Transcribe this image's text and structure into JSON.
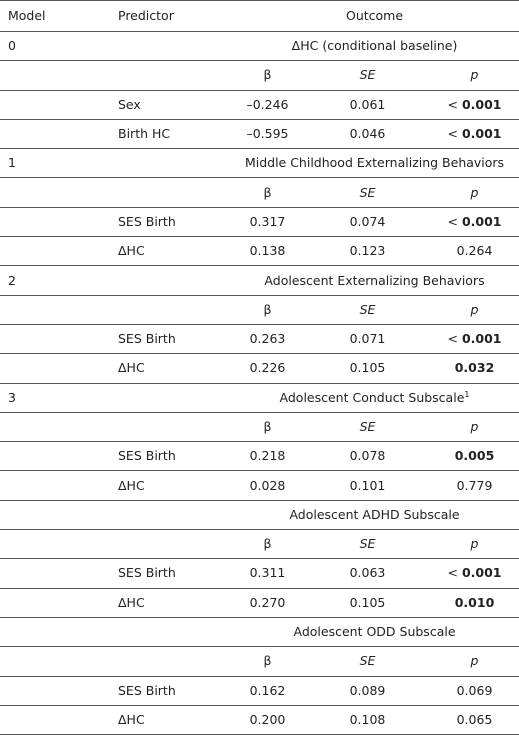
{
  "table": {
    "columns": [
      "Model",
      "Predictor",
      "Outcome"
    ],
    "blocks": [
      {
        "model": "0",
        "outcome": "ΔHC (conditional baseline)",
        "stat_headers": [
          "β",
          "SE",
          "p"
        ],
        "rows": [
          {
            "predictor": "Sex",
            "beta": "–0.246",
            "se": "0.061",
            "p_prefix": "<",
            "p": "0.001",
            "p_bold": true
          },
          {
            "predictor": "Birth  HC",
            "beta": "–0.595",
            "se": "0.046",
            "p_prefix": "<",
            "p": "0.001",
            "p_bold": true
          }
        ]
      },
      {
        "model": "1",
        "outcome": "Middle Childhood Externalizing Behaviors",
        "stat_headers": [
          "β",
          "SE",
          "p"
        ],
        "rows": [
          {
            "predictor": "SES Birth",
            "beta": "0.317",
            "se": "0.074",
            "p_prefix": "<",
            "p": "0.001",
            "p_bold": true
          },
          {
            "predictor": "ΔHC",
            "beta": "0.138",
            "se": "0.123",
            "p": "0.264",
            "p_bold": false
          }
        ]
      },
      {
        "model": "2",
        "outcome": "Adolescent Externalizing Behaviors",
        "stat_headers": [
          "β",
          "SE",
          "p"
        ],
        "rows": [
          {
            "predictor": "SES Birth",
            "beta": "0.263",
            "se": "0.071",
            "p_prefix": "<",
            "p": "0.001",
            "p_bold": true
          },
          {
            "predictor": "ΔHC",
            "beta": "0.226",
            "se": "0.105",
            "p": "0.032",
            "p_bold": true
          }
        ]
      },
      {
        "model": "3",
        "outcome": "Adolescent Conduct Subscale",
        "footnote": "1",
        "stat_headers": [
          "β",
          "SE",
          "p"
        ],
        "rows": [
          {
            "predictor": "SES Birth",
            "beta": "0.218",
            "se": "0.078",
            "p": "0.005",
            "p_bold": true
          },
          {
            "predictor": "ΔHC",
            "beta": "0.028",
            "se": "0.101",
            "p": "0.779",
            "p_bold": false
          }
        ]
      },
      {
        "outcome": "Adolescent ADHD Subscale",
        "stat_headers": [
          "β",
          "SE",
          "p"
        ],
        "rows": [
          {
            "predictor": "SES Birth",
            "beta": "0.311",
            "se": "0.063",
            "p_prefix": "<",
            "p": "0.001",
            "p_bold": true
          },
          {
            "predictor": "ΔHC",
            "beta": "0.270",
            "se": "0.105",
            "p": "0.010",
            "p_bold": true
          }
        ]
      },
      {
        "outcome": "Adolescent ODD Subscale",
        "stat_headers": [
          "β",
          "SE",
          "p"
        ],
        "rows": [
          {
            "predictor": "SES Birth",
            "beta": "0.162",
            "se": "0.089",
            "p": "0.069",
            "p_bold": false
          },
          {
            "predictor": "ΔHC",
            "beta": "0.200",
            "se": "0.108",
            "p": "0.065",
            "p_bold": false
          }
        ]
      }
    ]
  }
}
